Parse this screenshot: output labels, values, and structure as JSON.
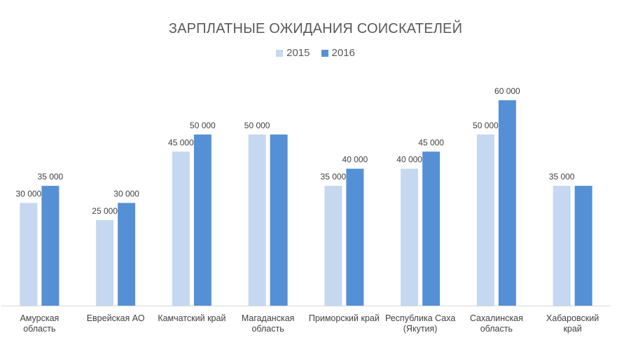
{
  "chart_data": {
    "type": "bar",
    "title": "ЗАРПЛАТНЫЕ ОЖИДАНИЯ СОИСКАТЕЛЕЙ",
    "xlabel": "",
    "ylabel": "",
    "ylim": [
      0,
      70000
    ],
    "grid": false,
    "legend_position": "top",
    "categories": [
      [
        "Амурская",
        "область"
      ],
      [
        "Еврейская АО"
      ],
      [
        "Камчатский край"
      ],
      [
        "Магаданская",
        "область"
      ],
      [
        "Приморский край"
      ],
      [
        "Республика Саха",
        "(Якутия)"
      ],
      [
        "Сахалинская",
        "область"
      ],
      [
        "Хабаровский",
        "край"
      ]
    ],
    "series": [
      {
        "name": "2015",
        "color": "#c5d8f0",
        "values": [
          30000,
          25000,
          45000,
          50000,
          35000,
          40000,
          50000,
          35000
        ],
        "labels": [
          "30 000",
          "25 000",
          "45 000",
          "50 000",
          "35 000",
          "40 000",
          "50 000",
          "35 000"
        ]
      },
      {
        "name": "2016",
        "color": "#5590d6",
        "values": [
          35000,
          30000,
          50000,
          50000,
          40000,
          45000,
          60000,
          35000
        ],
        "labels": [
          "35 000",
          "30 000",
          "50 000",
          "",
          "40 000",
          "45 000",
          "60 000",
          ""
        ]
      }
    ]
  }
}
